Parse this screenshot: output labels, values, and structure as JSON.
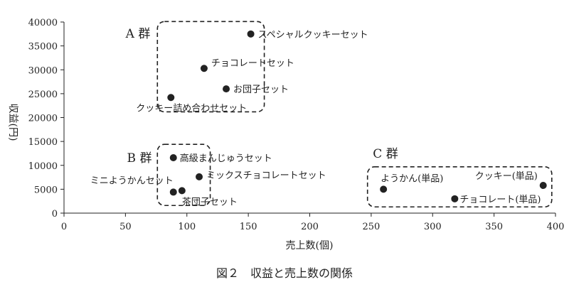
{
  "chart_data": {
    "type": "scatter",
    "xlabel": "売上数(個)",
    "ylabel": "収益(円)",
    "caption": "図２　収益と売上数の関係",
    "xlim": [
      0,
      400
    ],
    "ylim": [
      0,
      40000
    ],
    "xticks": [
      "0",
      "50",
      "100",
      "150",
      "200",
      "250",
      "300",
      "350",
      "400"
    ],
    "yticks": [
      "0",
      "5000",
      "10000",
      "15000",
      "20000",
      "25000",
      "30000",
      "35000",
      "40000"
    ],
    "grid": false,
    "points": [
      {
        "label": "スペシャルクッキーセット",
        "x": 152,
        "y": 37500,
        "group": "A"
      },
      {
        "label": "チョコレートセット",
        "x": 114,
        "y": 30300,
        "group": "A"
      },
      {
        "label": "お団子セット",
        "x": 132,
        "y": 26000,
        "group": "A"
      },
      {
        "label": "クッキー詰め合わせセット",
        "x": 87,
        "y": 24200,
        "group": "A"
      },
      {
        "label": "高級まんじゅうセット",
        "x": 89,
        "y": 11600,
        "group": "B"
      },
      {
        "label": "ミックスチョコレートセット",
        "x": 110,
        "y": 7600,
        "group": "B"
      },
      {
        "label": "ミニようかんセット",
        "x": 89,
        "y": 4400,
        "group": "B"
      },
      {
        "label": "茶団子セット",
        "x": 96,
        "y": 4700,
        "group": "B"
      },
      {
        "label": "ようかん(単品)",
        "x": 260,
        "y": 5000,
        "group": "C"
      },
      {
        "label": "クッキー(単品)",
        "x": 390,
        "y": 5800,
        "group": "C"
      },
      {
        "label": "チョコレート(単品)",
        "x": 318,
        "y": 3000,
        "group": "C"
      }
    ],
    "groups": [
      {
        "id": "A",
        "label": "A 群",
        "x_range": [
          76,
          163
        ],
        "y_range": [
          21200,
          40100
        ]
      },
      {
        "id": "B",
        "label": "B 群",
        "x_range": [
          76,
          119
        ],
        "y_range": [
          1600,
          14400
        ]
      },
      {
        "id": "C",
        "label": "C 群",
        "x_range": [
          247,
          397
        ],
        "y_range": [
          1300,
          9700
        ]
      }
    ]
  }
}
